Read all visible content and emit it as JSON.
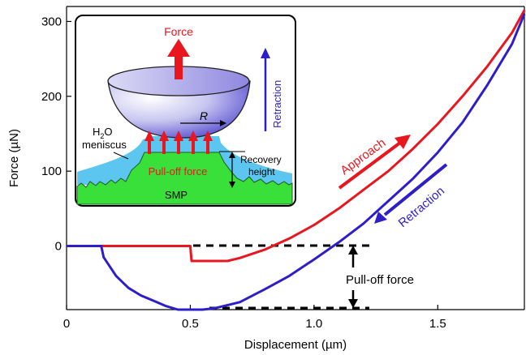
{
  "chart_data": {
    "type": "line",
    "xlabel": "Displacement (µm)",
    "ylabel": "Force (µN)",
    "xlim": [
      0,
      1.85
    ],
    "ylim": [
      -85,
      320
    ],
    "xticks": [
      0,
      0.5,
      1.0,
      1.5
    ],
    "xtick_labels": [
      "0",
      "0.5",
      "1.0",
      "1.5"
    ],
    "yticks": [
      0,
      100,
      200,
      300
    ],
    "ytick_labels": [
      "0",
      "100",
      "200",
      "300"
    ],
    "grid": false,
    "series": [
      {
        "name": "Approach",
        "color": "#e8161e",
        "x": [
          0,
          0.5,
          0.505,
          0.52,
          0.55,
          0.6,
          0.65,
          0.7,
          0.8,
          0.9,
          1.0,
          1.1,
          1.2,
          1.3,
          1.4,
          1.5,
          1.6,
          1.7,
          1.8,
          1.85
        ],
        "y": [
          0,
          0,
          -20,
          -20,
          -20,
          -20,
          -20,
          -16,
          -5,
          10,
          28,
          50,
          75,
          100,
          130,
          163,
          200,
          240,
          285,
          315
        ]
      },
      {
        "name": "Retraction",
        "color": "#2e1ec8",
        "x": [
          0,
          0.14,
          0.15,
          0.2,
          0.25,
          0.3,
          0.35,
          0.4,
          0.45,
          0.5,
          0.55,
          0.6,
          0.7,
          0.8,
          0.9,
          1.0,
          1.1,
          1.2,
          1.3,
          1.4,
          1.5,
          1.6,
          1.7,
          1.8,
          1.85
        ],
        "y": [
          0,
          0,
          -15,
          -40,
          -56,
          -66,
          -73,
          -80,
          -85,
          -85,
          -85,
          -83,
          -75,
          -58,
          -40,
          -18,
          5,
          30,
          60,
          90,
          125,
          165,
          215,
          270,
          310
        ]
      }
    ],
    "annotations": {
      "approach_label": "Approach",
      "retraction_label": "Retraction",
      "pulloff_label": "Pull-off force"
    }
  },
  "inset": {
    "force_label": "Force",
    "retraction_label": "Retraction",
    "r_label": "R",
    "h2o_label": "H",
    "h2o_sub": "2",
    "h2o_suffix": "O",
    "meniscus_label": "meniscus",
    "pulloff_label": "Pull-off force",
    "recovery_label_1": "Recovery",
    "recovery_label_2": "height",
    "smp_label": "SMP"
  }
}
